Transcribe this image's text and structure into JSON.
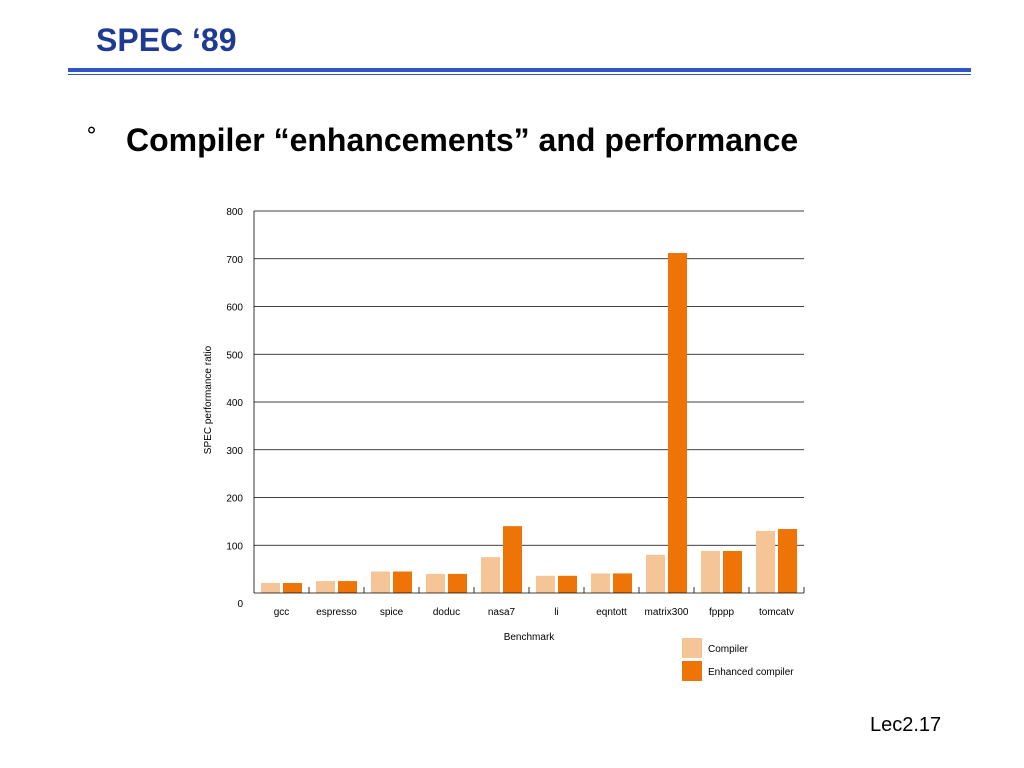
{
  "slide": {
    "title": "SPEC ‘89",
    "bullet_symbol": "°",
    "heading": "Compiler “enhancements” and performance",
    "footer": "Lec2.17"
  },
  "chart_data": {
    "type": "bar",
    "title": "",
    "xlabel": "Benchmark",
    "ylabel": "SPEC performance ratio",
    "ylim": [
      0,
      800
    ],
    "yticks": [
      0,
      100,
      200,
      300,
      400,
      500,
      600,
      700,
      800
    ],
    "grid": true,
    "legend_position": "bottom-right",
    "categories": [
      "gcc",
      "espresso",
      "spice",
      "doduc",
      "nasa7",
      "li",
      "eqntott",
      "matrix300",
      "fpppp",
      "tomcatv"
    ],
    "series": [
      {
        "name": "Compiler",
        "color": "#f5c497",
        "values": [
          21,
          25,
          45,
          40,
          75,
          36,
          41,
          80,
          88,
          130
        ]
      },
      {
        "name": "Enhanced compiler",
        "color": "#ee7408",
        "values": [
          21,
          25,
          45,
          40,
          140,
          36,
          41,
          712,
          88,
          134
        ]
      }
    ]
  }
}
